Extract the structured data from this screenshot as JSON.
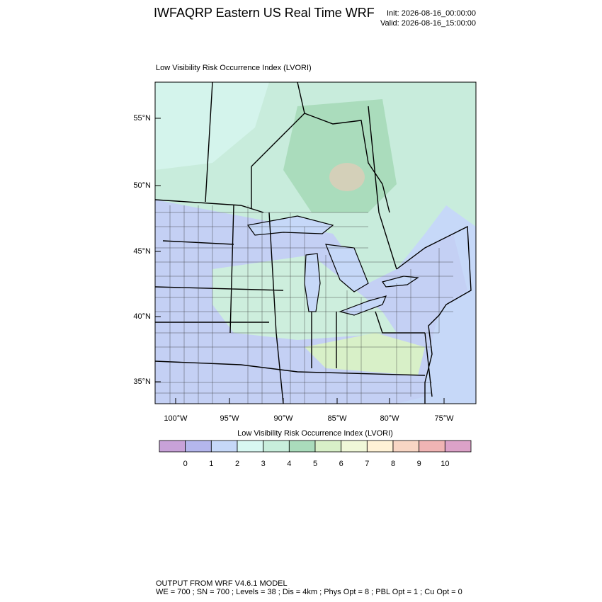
{
  "header": {
    "title": "IWFAQRP Eastern US Real Time WRF",
    "init": "Init: 2026-08-16_00:00:00",
    "valid": "Valid: 2026-08-16_15:00:00"
  },
  "map": {
    "title": "Low Visibility Risk Occurrence Index   (LVORI)",
    "lat_labels": [
      "55°N",
      "50°N",
      "45°N",
      "40°N",
      "35°N"
    ],
    "lon_labels": [
      "100°W",
      "95°W",
      "90°W",
      "85°W",
      "80°W",
      "75°W"
    ]
  },
  "colorbar": {
    "title": "Low Visibility Risk Occurrence Index  (LVORI)",
    "colors": [
      "#c8a2d8",
      "#b4b6ec",
      "#c6d8f8",
      "#d8f8f2",
      "#c8eedc",
      "#aadcbc",
      "#d8f0c8",
      "#f0f8d8",
      "#fff2d6",
      "#f8d6c4",
      "#f0b4b4",
      "#dca2c8"
    ],
    "labels": [
      0,
      1,
      2,
      3,
      4,
      5,
      6,
      7,
      8,
      9,
      10
    ]
  },
  "footer": {
    "line1": "OUTPUT FROM WRF V4.6.1 MODEL",
    "line2": "WE = 700 ; SN = 700 ; Levels = 38 ; Dis = 4km ; Phys Opt = 8 ; PBL Opt = 1 ; Cu Opt = 0"
  }
}
